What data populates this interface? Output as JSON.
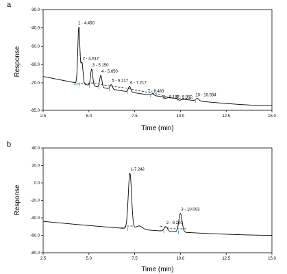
{
  "chart_data": [
    {
      "panel": "a",
      "type": "line",
      "xlabel": "Time (min)",
      "ylabel": "Response",
      "xlim": [
        2.5,
        15.0
      ],
      "ylim": [
        -85.0,
        -30.0
      ],
      "xticks": [
        "2.5",
        "5.0",
        "7.5",
        "10.0",
        "12.5",
        "15.0"
      ],
      "yticks": [
        "-30.0",
        "-40.0",
        "-50.0",
        "-60.0",
        "-70.0",
        "-85.0"
      ],
      "yticks_values": [
        -30,
        -40,
        -50,
        -60,
        -70,
        -85
      ],
      "baseline": {
        "start": [
          2.5,
          -66.5
        ],
        "end": [
          15.0,
          -82.5
        ]
      },
      "peaks": [
        {
          "label": "1 - 4.450",
          "x": 4.45,
          "y": -39.5
        },
        {
          "label": "2 - 4.617",
          "x": 4.62,
          "y": -59.0
        },
        {
          "label": "3 - 5.150",
          "x": 5.15,
          "y": -62.5
        },
        {
          "label": "4 - 5.650",
          "x": 5.65,
          "y": -66.0
        },
        {
          "label": "5 - 6.217",
          "x": 6.22,
          "y": -71.0
        },
        {
          "label": "6 - 7.217",
          "x": 7.22,
          "y": -72.0
        },
        {
          "label": "7 - 8.483",
          "x": 8.48,
          "y": -76.0
        },
        {
          "label": "8 - 9.167",
          "x": 9.17,
          "y": -78.5
        },
        {
          "label": "9 - 9.950",
          "x": 9.95,
          "y": -79.5
        },
        {
          "label": "10 - 10.934",
          "x": 10.93,
          "y": -78.5
        }
      ]
    },
    {
      "panel": "b",
      "type": "line",
      "xlabel": "Time (min)",
      "ylabel": "Response",
      "xlim": [
        2.5,
        15.0
      ],
      "ylim": [
        -80.0,
        40.0
      ],
      "xticks": [
        "2.5",
        "5.0",
        "7.5",
        "10.0",
        "12.5",
        "15.0"
      ],
      "yticks": [
        "40.0",
        "20.0",
        "0.0",
        "-20.0",
        "-40.0",
        "-60.0",
        "-80.0"
      ],
      "yticks_values": [
        40,
        20,
        0,
        -20,
        -40,
        -60,
        -80
      ],
      "baseline": {
        "start": [
          2.5,
          -44.0
        ],
        "end": [
          15.0,
          -60.0
        ]
      },
      "peaks": [
        {
          "label": "1-7.242",
          "x": 7.24,
          "y": 11.0
        },
        {
          "label": "2 - 9.200",
          "x": 9.2,
          "y": -50.0
        },
        {
          "label": "3 - 10.003",
          "x": 10.0,
          "y": -35.0
        }
      ]
    }
  ]
}
